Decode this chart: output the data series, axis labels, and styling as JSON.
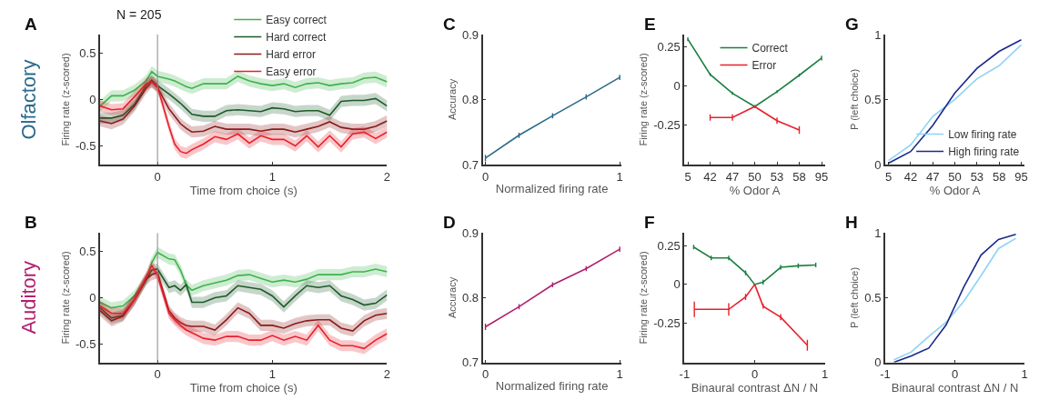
{
  "chart_data": [
    {
      "type": "line",
      "title": "A",
      "xlabel": "Time from choice (s)",
      "ylabel": "Firing rate (z-scored)",
      "annotations": [
        "Olfactory",
        "N = 205"
      ],
      "legend": "top right",
      "xlim": [
        -0.5,
        2
      ],
      "xticks": [
        0,
        1,
        2
      ],
      "ylim": [
        -0.7,
        0.7
      ],
      "yticks": [
        -0.5,
        0,
        0.5
      ],
      "ref_lines": [
        {
          "axis": "x",
          "value": 0,
          "color": "#888888"
        }
      ],
      "x": [
        -0.5,
        -0.4,
        -0.3,
        -0.2,
        -0.1,
        -0.05,
        0,
        0.1,
        0.15,
        0.2,
        0.25,
        0.3,
        0.4,
        0.5,
        0.6,
        0.7,
        0.8,
        0.9,
        1.0,
        1.1,
        1.2,
        1.3,
        1.4,
        1.5,
        1.6,
        1.7,
        1.8,
        1.9,
        2.0
      ],
      "series": [
        {
          "name": "Easy correct",
          "color": "#3cb44a",
          "values": [
            -0.07,
            0.04,
            0.04,
            0.1,
            0.2,
            0.3,
            0.25,
            0.22,
            0.2,
            0.17,
            0.14,
            0.12,
            0.17,
            0.17,
            0.17,
            0.25,
            0.2,
            0.17,
            0.15,
            0.17,
            0.13,
            0.17,
            0.18,
            0.15,
            0.17,
            0.18,
            0.23,
            0.24,
            0.19
          ],
          "lower": [
            -0.13,
            -0.02,
            -0.02,
            0.04,
            0.14,
            0.24,
            0.19,
            0.16,
            0.14,
            0.11,
            0.08,
            0.06,
            0.11,
            0.11,
            0.11,
            0.19,
            0.14,
            0.11,
            0.09,
            0.11,
            0.07,
            0.11,
            0.12,
            0.09,
            0.11,
            0.12,
            0.17,
            0.18,
            0.13
          ],
          "upper": [
            -0.01,
            0.1,
            0.1,
            0.16,
            0.26,
            0.36,
            0.31,
            0.28,
            0.26,
            0.23,
            0.2,
            0.18,
            0.23,
            0.23,
            0.23,
            0.31,
            0.26,
            0.23,
            0.21,
            0.23,
            0.19,
            0.23,
            0.24,
            0.21,
            0.23,
            0.24,
            0.29,
            0.3,
            0.25
          ]
        },
        {
          "name": "Hard correct",
          "color": "#1e5a2a",
          "values": [
            -0.2,
            -0.2,
            -0.17,
            -0.05,
            0.15,
            0.21,
            0.15,
            0.06,
            0.01,
            -0.04,
            -0.1,
            -0.16,
            -0.18,
            -0.18,
            -0.12,
            -0.11,
            -0.12,
            -0.13,
            -0.09,
            -0.1,
            -0.13,
            -0.12,
            -0.12,
            -0.17,
            -0.02,
            -0.01,
            -0.01,
            0.01,
            -0.07
          ],
          "lower": [
            -0.26,
            -0.26,
            -0.23,
            -0.11,
            0.09,
            0.15,
            0.09,
            0.0,
            -0.05,
            -0.1,
            -0.16,
            -0.22,
            -0.24,
            -0.24,
            -0.18,
            -0.17,
            -0.18,
            -0.19,
            -0.15,
            -0.16,
            -0.19,
            -0.18,
            -0.18,
            -0.23,
            -0.08,
            -0.07,
            -0.07,
            -0.05,
            -0.13
          ],
          "upper": [
            -0.14,
            -0.14,
            -0.11,
            0.01,
            0.21,
            0.27,
            0.21,
            0.12,
            0.07,
            0.02,
            -0.04,
            -0.1,
            -0.12,
            -0.12,
            -0.06,
            -0.05,
            -0.06,
            -0.07,
            -0.03,
            -0.04,
            -0.07,
            -0.06,
            -0.06,
            -0.11,
            0.04,
            0.05,
            0.05,
            0.07,
            -0.01
          ]
        },
        {
          "name": "Hard error",
          "color": "#8b1a1a",
          "values": [
            -0.23,
            -0.26,
            -0.21,
            -0.07,
            0.12,
            0.19,
            0.13,
            -0.1,
            -0.18,
            -0.26,
            -0.31,
            -0.35,
            -0.34,
            -0.29,
            -0.32,
            -0.32,
            -0.32,
            -0.34,
            -0.32,
            -0.32,
            -0.35,
            -0.32,
            -0.29,
            -0.24,
            -0.3,
            -0.32,
            -0.32,
            -0.29,
            -0.23
          ],
          "lower": [
            -0.29,
            -0.32,
            -0.27,
            -0.13,
            0.06,
            0.13,
            0.07,
            -0.16,
            -0.24,
            -0.32,
            -0.37,
            -0.41,
            -0.4,
            -0.35,
            -0.38,
            -0.38,
            -0.38,
            -0.4,
            -0.38,
            -0.38,
            -0.41,
            -0.38,
            -0.35,
            -0.3,
            -0.36,
            -0.38,
            -0.38,
            -0.35,
            -0.29
          ],
          "upper": [
            -0.17,
            -0.2,
            -0.15,
            -0.01,
            0.18,
            0.25,
            0.19,
            -0.04,
            -0.12,
            -0.2,
            -0.25,
            -0.29,
            -0.28,
            -0.23,
            -0.26,
            -0.26,
            -0.26,
            -0.28,
            -0.26,
            -0.26,
            -0.29,
            -0.26,
            -0.23,
            -0.18,
            -0.24,
            -0.26,
            -0.26,
            -0.23,
            -0.17
          ]
        },
        {
          "name": "Easy error",
          "color": "#e8202a",
          "values": [
            -0.07,
            -0.11,
            -0.1,
            0.03,
            0.17,
            0.19,
            0.14,
            -0.29,
            -0.48,
            -0.56,
            -0.58,
            -0.54,
            -0.48,
            -0.4,
            -0.43,
            -0.37,
            -0.47,
            -0.39,
            -0.43,
            -0.43,
            -0.5,
            -0.39,
            -0.51,
            -0.39,
            -0.51,
            -0.37,
            -0.35,
            -0.42,
            -0.35
          ],
          "lower": [
            -0.13,
            -0.17,
            -0.16,
            -0.03,
            0.11,
            0.13,
            0.08,
            -0.35,
            -0.54,
            -0.62,
            -0.64,
            -0.6,
            -0.54,
            -0.46,
            -0.49,
            -0.43,
            -0.53,
            -0.45,
            -0.49,
            -0.49,
            -0.56,
            -0.45,
            -0.57,
            -0.45,
            -0.57,
            -0.43,
            -0.41,
            -0.48,
            -0.41
          ],
          "upper": [
            -0.01,
            -0.05,
            -0.04,
            0.09,
            0.23,
            0.25,
            0.2,
            -0.23,
            -0.42,
            -0.5,
            -0.52,
            -0.48,
            -0.42,
            -0.34,
            -0.37,
            -0.31,
            -0.41,
            -0.33,
            -0.37,
            -0.37,
            -0.44,
            -0.33,
            -0.45,
            -0.33,
            -0.45,
            -0.31,
            -0.29,
            -0.36,
            -0.29
          ]
        }
      ]
    },
    {
      "type": "line",
      "title": "C",
      "xlabel": "Normalized firing rate",
      "ylabel": "Accuracy",
      "xlim": [
        -0.02,
        1.01
      ],
      "xticks": [
        0,
        1
      ],
      "ylim": [
        0.7,
        0.9
      ],
      "yticks": [
        0.7,
        0.8,
        0.9
      ],
      "x": [
        0,
        0.25,
        0.5,
        0.75,
        1
      ],
      "series": [
        {
          "color": "#2b6a8a",
          "values": [
            0.71,
            0.745,
            0.775,
            0.804,
            0.834
          ],
          "errors": [
            0.005,
            0.004,
            0.004,
            0.004,
            0.004
          ]
        }
      ]
    },
    {
      "type": "line",
      "title": "E",
      "xlabel": "% Odor A",
      "ylabel": "Firing rate (z-scored)",
      "legend": "top",
      "ylim": [
        -0.5,
        0.33
      ],
      "yticks": [
        -0.25,
        0,
        0.25
      ],
      "categories": [
        "5",
        "42",
        "47",
        "50",
        "53",
        "58",
        "95"
      ],
      "series": [
        {
          "name": "Correct",
          "color": "#1a8040",
          "values": [
            0.3,
            0.075,
            -0.045,
            -0.13,
            -0.035,
            0.07,
            0.18
          ],
          "errors": [
            0.012,
            0.01,
            0.01,
            0.01,
            0.01,
            0.01,
            0.015
          ]
        },
        {
          "name": "Error",
          "color": "#e8202a",
          "values": [
            null,
            -0.2,
            -0.2,
            -0.13,
            -0.22,
            -0.28,
            null
          ],
          "errors": [
            null,
            0.02,
            0.02,
            null,
            0.02,
            0.025,
            null
          ]
        }
      ]
    },
    {
      "type": "line",
      "title": "G",
      "xlabel": "% Odor A",
      "ylabel": "P (left choice)",
      "legend": "bottom right",
      "ylim": [
        0,
        1
      ],
      "yticks": [
        0,
        0.5,
        1
      ],
      "categories": [
        "5",
        "42",
        "47",
        "50",
        "53",
        "58",
        "95"
      ],
      "series": [
        {
          "name": "Low firing rate",
          "color": "#8fd3f4",
          "values": [
            0.03,
            0.15,
            0.37,
            0.5,
            0.66,
            0.76,
            0.92
          ]
        },
        {
          "name": "High firing rate",
          "color": "#1a2a8c",
          "values": [
            0.01,
            0.1,
            0.3,
            0.55,
            0.74,
            0.87,
            0.96
          ]
        }
      ]
    },
    {
      "type": "line",
      "title": "B",
      "xlabel": "Time from choice (s)",
      "ylabel": "Firing rate (z-scored)",
      "annotations": [
        "Auditory"
      ],
      "xlim": [
        -0.5,
        2
      ],
      "xticks": [
        0,
        1,
        2
      ],
      "ylim": [
        -0.7,
        0.7
      ],
      "yticks": [
        -0.5,
        0,
        0.5
      ],
      "ref_lines": [
        {
          "axis": "x",
          "value": 0,
          "color": "#888888"
        }
      ],
      "x": [
        -0.5,
        -0.4,
        -0.3,
        -0.2,
        -0.1,
        -0.05,
        0,
        0.1,
        0.15,
        0.2,
        0.25,
        0.3,
        0.4,
        0.5,
        0.6,
        0.7,
        0.8,
        0.9,
        1.0,
        1.1,
        1.2,
        1.3,
        1.4,
        1.5,
        1.6,
        1.7,
        1.8,
        1.9,
        2.0
      ],
      "series": [
        {
          "color": "#3cb44a",
          "values": [
            -0.05,
            -0.11,
            -0.09,
            0.02,
            0.2,
            0.38,
            0.49,
            0.42,
            0.41,
            0.3,
            0.14,
            0.08,
            0.13,
            0.16,
            0.19,
            0.24,
            0.25,
            0.21,
            0.17,
            0.19,
            0.17,
            0.2,
            0.25,
            0.25,
            0.25,
            0.28,
            0.28,
            0.31,
            0.28
          ],
          "lower": [
            -0.11,
            -0.17,
            -0.15,
            -0.04,
            0.14,
            0.32,
            0.43,
            0.36,
            0.35,
            0.24,
            0.08,
            0.02,
            0.07,
            0.1,
            0.13,
            0.18,
            0.19,
            0.15,
            0.11,
            0.13,
            0.11,
            0.14,
            0.19,
            0.19,
            0.19,
            0.22,
            0.22,
            0.25,
            0.22
          ],
          "upper": [
            0.01,
            -0.05,
            -0.03,
            0.08,
            0.26,
            0.44,
            0.55,
            0.48,
            0.47,
            0.36,
            0.2,
            0.14,
            0.19,
            0.22,
            0.25,
            0.3,
            0.31,
            0.27,
            0.23,
            0.25,
            0.23,
            0.26,
            0.31,
            0.31,
            0.31,
            0.34,
            0.34,
            0.37,
            0.34
          ]
        },
        {
          "color": "#1e5a2a",
          "values": [
            -0.11,
            -0.22,
            -0.19,
            -0.02,
            0.19,
            0.3,
            0.31,
            0.11,
            0.13,
            0.08,
            0.14,
            -0.05,
            -0.05,
            0.0,
            0.02,
            0.13,
            0.11,
            0.09,
            0.02,
            -0.1,
            0.02,
            0.13,
            0.11,
            0.13,
            0.02,
            -0.02,
            -0.08,
            -0.06,
            0.03
          ],
          "lower": [
            -0.17,
            -0.28,
            -0.25,
            -0.08,
            0.13,
            0.24,
            0.25,
            0.05,
            0.07,
            0.02,
            0.08,
            -0.11,
            -0.11,
            -0.06,
            -0.04,
            0.07,
            0.05,
            0.03,
            -0.04,
            -0.16,
            -0.04,
            0.07,
            0.05,
            0.07,
            -0.04,
            -0.08,
            -0.14,
            -0.12,
            -0.03
          ],
          "upper": [
            -0.05,
            -0.16,
            -0.13,
            0.04,
            0.25,
            0.36,
            0.37,
            0.17,
            0.19,
            0.14,
            0.2,
            0.01,
            0.01,
            0.06,
            0.08,
            0.19,
            0.17,
            0.15,
            0.08,
            -0.04,
            0.08,
            0.19,
            0.17,
            0.19,
            0.08,
            0.04,
            -0.02,
            0.0,
            0.09
          ]
        },
        {
          "color": "#8b1a1a",
          "values": [
            -0.14,
            -0.25,
            -0.2,
            -0.02,
            0.2,
            0.25,
            0.27,
            -0.14,
            -0.22,
            -0.27,
            -0.3,
            -0.31,
            -0.31,
            -0.35,
            -0.24,
            -0.11,
            -0.17,
            -0.3,
            -0.3,
            -0.33,
            -0.28,
            -0.25,
            -0.24,
            -0.24,
            -0.33,
            -0.36,
            -0.25,
            -0.19,
            -0.17
          ],
          "lower": [
            -0.2,
            -0.31,
            -0.26,
            -0.08,
            0.14,
            0.19,
            0.21,
            -0.2,
            -0.28,
            -0.33,
            -0.36,
            -0.37,
            -0.37,
            -0.41,
            -0.3,
            -0.17,
            -0.23,
            -0.36,
            -0.36,
            -0.39,
            -0.34,
            -0.31,
            -0.3,
            -0.3,
            -0.39,
            -0.42,
            -0.31,
            -0.25,
            -0.23
          ],
          "upper": [
            -0.08,
            -0.19,
            -0.14,
            0.04,
            0.26,
            0.31,
            0.33,
            -0.08,
            -0.16,
            -0.21,
            -0.24,
            -0.25,
            -0.25,
            -0.29,
            -0.18,
            -0.05,
            -0.11,
            -0.24,
            -0.24,
            -0.27,
            -0.22,
            -0.19,
            -0.18,
            -0.18,
            -0.27,
            -0.3,
            -0.19,
            -0.13,
            -0.11
          ]
        },
        {
          "color": "#e8202a",
          "values": [
            -0.09,
            -0.17,
            -0.17,
            -0.02,
            0.22,
            0.35,
            0.24,
            -0.17,
            -0.24,
            -0.3,
            -0.35,
            -0.38,
            -0.44,
            -0.46,
            -0.42,
            -0.42,
            -0.46,
            -0.46,
            -0.41,
            -0.46,
            -0.42,
            -0.46,
            -0.3,
            -0.46,
            -0.52,
            -0.52,
            -0.55,
            -0.46,
            -0.39
          ],
          "lower": [
            -0.15,
            -0.23,
            -0.23,
            -0.08,
            0.16,
            0.29,
            0.18,
            -0.23,
            -0.3,
            -0.36,
            -0.41,
            -0.44,
            -0.5,
            -0.52,
            -0.48,
            -0.48,
            -0.52,
            -0.52,
            -0.47,
            -0.52,
            -0.48,
            -0.52,
            -0.36,
            -0.52,
            -0.58,
            -0.58,
            -0.61,
            -0.52,
            -0.45
          ],
          "upper": [
            -0.03,
            -0.11,
            -0.11,
            0.04,
            0.28,
            0.41,
            0.3,
            -0.11,
            -0.18,
            -0.24,
            -0.29,
            -0.32,
            -0.38,
            -0.4,
            -0.36,
            -0.36,
            -0.4,
            -0.4,
            -0.35,
            -0.4,
            -0.36,
            -0.4,
            -0.24,
            -0.4,
            -0.46,
            -0.46,
            -0.49,
            -0.4,
            -0.33
          ]
        }
      ]
    },
    {
      "type": "line",
      "title": "D",
      "xlabel": "Normalized firing rate",
      "ylabel": "Accuracy",
      "xlim": [
        -0.02,
        1.01
      ],
      "xticks": [
        0,
        1
      ],
      "ylim": [
        0.7,
        0.9
      ],
      "yticks": [
        0.7,
        0.8,
        0.9
      ],
      "x": [
        0,
        0.25,
        0.5,
        0.75,
        1
      ],
      "series": [
        {
          "color": "#b0206e",
          "values": [
            0.755,
            0.786,
            0.82,
            0.845,
            0.875
          ],
          "errors": [
            0.005,
            0.004,
            0.004,
            0.004,
            0.004
          ]
        }
      ]
    },
    {
      "type": "line",
      "title": "F",
      "xlabel": "Binaural contrast ΔN / N",
      "ylabel": "Firing rate (z-scored)",
      "xlim": [
        -1,
        1
      ],
      "xticks": [
        -1,
        0,
        1
      ],
      "ylim": [
        -0.5,
        0.33
      ],
      "yticks": [
        -0.25,
        0,
        0.25
      ],
      "series": [
        {
          "color": "#1a8040",
          "x": [
            -0.87,
            -0.62,
            -0.37,
            -0.13,
            0,
            0.12,
            0.37,
            0.62,
            0.87
          ],
          "values": [
            0.24,
            0.17,
            0.17,
            0.075,
            0,
            0.015,
            0.11,
            0.12,
            0.125
          ],
          "errors": [
            0.015,
            0.015,
            0.015,
            0.015,
            null,
            0.015,
            0.015,
            0.015,
            0.015
          ]
        },
        {
          "color": "#e8202a",
          "x": [
            -0.86,
            -0.37,
            -0.13,
            0,
            0.12,
            0.37,
            0.75
          ],
          "values": [
            -0.16,
            -0.16,
            -0.08,
            0,
            -0.14,
            -0.21,
            -0.39
          ],
          "errors": [
            0.05,
            0.04,
            0.02,
            null,
            0.015,
            0.02,
            0.035
          ]
        }
      ]
    },
    {
      "type": "line",
      "title": "H",
      "xlabel": "Binaural contrast ΔN / N",
      "ylabel": "P (left choice)",
      "xlim": [
        -1,
        1
      ],
      "xticks": [
        -1,
        0,
        1
      ],
      "ylim": [
        0,
        1
      ],
      "yticks": [
        0,
        0.5,
        1
      ],
      "x": [
        -0.875,
        -0.625,
        -0.375,
        -0.125,
        0.125,
        0.375,
        0.625,
        0.875
      ],
      "series": [
        {
          "color": "#8fd3f4",
          "values": [
            0.02,
            0.08,
            0.2,
            0.31,
            0.47,
            0.67,
            0.88,
            0.96
          ]
        },
        {
          "color": "#1a2a8c",
          "values": [
            0.0,
            0.05,
            0.11,
            0.29,
            0.58,
            0.83,
            0.95,
            0.99
          ]
        }
      ]
    }
  ]
}
